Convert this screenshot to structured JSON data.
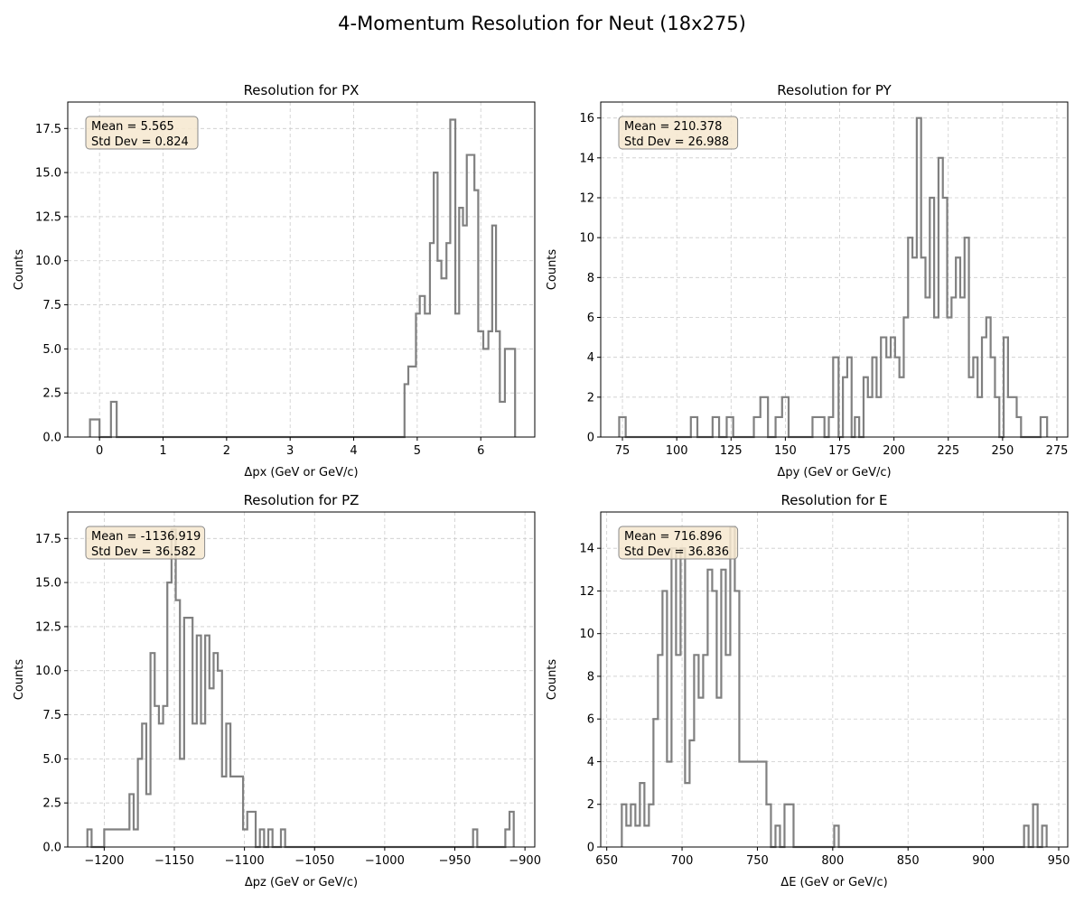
{
  "figure": {
    "title": "4-Momentum Resolution for Neut (18x275)",
    "line_color": "#808080",
    "grid_color": "#cccccc",
    "stats_box_fill": "#f6e7cf",
    "stats_box_edge": "#8a8a8a"
  },
  "chart_data": [
    {
      "type": "histogram",
      "title": "Resolution for PX",
      "xlabel": "Δpx (GeV or GeV/c)",
      "ylabel": "Counts",
      "xlim": [
        -0.5,
        6.85
      ],
      "ylim": [
        0,
        19.0
      ],
      "xticks": [
        0,
        1,
        2,
        3,
        4,
        5,
        6
      ],
      "xtick_labels": [
        "0",
        "1",
        "2",
        "3",
        "4",
        "5",
        "6"
      ],
      "yticks": [
        0,
        2.5,
        5,
        7.5,
        10,
        12.5,
        15,
        17.5
      ],
      "ytick_labels": [
        "0.0",
        "2.5",
        "5.0",
        "7.5",
        "10.0",
        "12.5",
        "15.0",
        "17.5"
      ],
      "grid": true,
      "stats": [
        "Mean = 5.565",
        "Std Dev = 0.824"
      ],
      "stats_position": "top-left",
      "bins": [
        [
          -0.15,
          0,
          1
        ],
        [
          0,
          0.18,
          0
        ],
        [
          0.18,
          0.27,
          2
        ],
        [
          0.27,
          4.8,
          0
        ],
        [
          4.8,
          4.86,
          3
        ],
        [
          4.86,
          4.98,
          4
        ],
        [
          4.98,
          5.04,
          7
        ],
        [
          5.04,
          5.12,
          8
        ],
        [
          5.12,
          5.2,
          7
        ],
        [
          5.2,
          5.26,
          11
        ],
        [
          5.26,
          5.32,
          15
        ],
        [
          5.32,
          5.38,
          10
        ],
        [
          5.38,
          5.46,
          9
        ],
        [
          5.46,
          5.52,
          11
        ],
        [
          5.52,
          5.6,
          18
        ],
        [
          5.6,
          5.66,
          7
        ],
        [
          5.66,
          5.72,
          13
        ],
        [
          5.72,
          5.78,
          12
        ],
        [
          5.78,
          5.9,
          16
        ],
        [
          5.9,
          5.96,
          14
        ],
        [
          5.96,
          6.04,
          6
        ],
        [
          6.04,
          6.12,
          5
        ],
        [
          6.12,
          6.18,
          6
        ],
        [
          6.18,
          6.24,
          12
        ],
        [
          6.24,
          6.3,
          6
        ],
        [
          6.3,
          6.38,
          2
        ],
        [
          6.38,
          6.54,
          5
        ]
      ]
    },
    {
      "type": "histogram",
      "title": "Resolution for PY",
      "xlabel": "Δpy (GeV or GeV/c)",
      "ylabel": "Counts",
      "xlim": [
        65,
        280
      ],
      "ylim": [
        0,
        16.8
      ],
      "xticks": [
        75,
        100,
        125,
        150,
        175,
        200,
        225,
        250,
        275
      ],
      "xtick_labels": [
        "75",
        "100",
        "125",
        "150",
        "175",
        "200",
        "225",
        "250",
        "275"
      ],
      "yticks": [
        0,
        2,
        4,
        6,
        8,
        10,
        12,
        14,
        16
      ],
      "ytick_labels": [
        "0",
        "2",
        "4",
        "6",
        "8",
        "10",
        "12",
        "14",
        "16"
      ],
      "grid": true,
      "stats": [
        "Mean = 210.378",
        "Std Dev = 26.988"
      ],
      "stats_position": "top-left",
      "bins": [
        [
          73.5,
          76.5,
          1
        ],
        [
          76.5,
          106.5,
          0
        ],
        [
          106.5,
          109.5,
          1
        ],
        [
          109.5,
          116.5,
          0
        ],
        [
          116.5,
          119.5,
          1
        ],
        [
          119.5,
          123,
          0
        ],
        [
          123,
          126,
          1
        ],
        [
          126,
          135.5,
          0
        ],
        [
          135.5,
          138.5,
          1
        ],
        [
          138.5,
          142,
          2
        ],
        [
          142,
          145.5,
          0
        ],
        [
          145.5,
          148.5,
          1
        ],
        [
          148.5,
          151.5,
          2
        ],
        [
          151.5,
          162.5,
          0
        ],
        [
          162.5,
          168,
          1
        ],
        [
          168,
          170,
          0
        ],
        [
          170,
          172,
          1
        ],
        [
          172,
          174.5,
          4
        ],
        [
          174.5,
          176.5,
          0
        ],
        [
          176.5,
          178.5,
          3
        ],
        [
          178.5,
          180.5,
          4
        ],
        [
          180.5,
          182,
          0
        ],
        [
          182,
          184,
          1
        ],
        [
          184,
          186,
          0
        ],
        [
          186,
          188,
          3
        ],
        [
          188,
          190,
          2
        ],
        [
          190,
          192,
          4
        ],
        [
          192,
          194,
          2
        ],
        [
          194,
          196.5,
          5
        ],
        [
          196.5,
          198.5,
          4
        ],
        [
          198.5,
          200.5,
          5
        ],
        [
          200.5,
          202.5,
          4
        ],
        [
          202.5,
          204.5,
          3
        ],
        [
          204.5,
          206.5,
          6
        ],
        [
          206.5,
          208.5,
          10
        ],
        [
          208.5,
          210.5,
          9
        ],
        [
          210.5,
          212.5,
          16
        ],
        [
          212.5,
          214.5,
          9
        ],
        [
          214.5,
          216.5,
          7
        ],
        [
          216.5,
          218.5,
          12
        ],
        [
          218.5,
          220.5,
          6
        ],
        [
          220.5,
          222.5,
          14
        ],
        [
          222.5,
          224.5,
          12
        ],
        [
          224.5,
          226.5,
          6
        ],
        [
          226.5,
          228.5,
          7
        ],
        [
          228.5,
          230.5,
          9
        ],
        [
          230.5,
          232.5,
          7
        ],
        [
          232.5,
          234.5,
          10
        ],
        [
          234.5,
          236.5,
          3
        ],
        [
          236.5,
          238.5,
          4
        ],
        [
          238.5,
          240.5,
          2
        ],
        [
          240.5,
          242.5,
          5
        ],
        [
          242.5,
          244.5,
          6
        ],
        [
          244.5,
          246.5,
          4
        ],
        [
          246.5,
          248.5,
          2
        ],
        [
          248.5,
          250.5,
          0
        ],
        [
          250.5,
          252.5,
          5
        ],
        [
          252.5,
          254.5,
          2
        ],
        [
          254.5,
          256.5,
          2
        ],
        [
          256.5,
          258.5,
          1
        ],
        [
          258.5,
          267.5,
          0
        ],
        [
          267.5,
          270.5,
          1
        ]
      ]
    },
    {
      "type": "histogram",
      "title": "Resolution for PZ",
      "xlabel": "Δpz (GeV or GeV/c)",
      "ylabel": "Counts",
      "xlim": [
        -1226,
        -893
      ],
      "ylim": [
        0,
        19.0
      ],
      "xticks": [
        -1200,
        -1150,
        -1100,
        -1050,
        -1000,
        -950,
        -900
      ],
      "xtick_labels": [
        "−1200",
        "−1150",
        "−1100",
        "−1050",
        "−1000",
        "−950",
        "−900"
      ],
      "yticks": [
        0,
        2.5,
        5,
        7.5,
        10,
        12.5,
        15,
        17.5
      ],
      "ytick_labels": [
        "0.0",
        "2.5",
        "5.0",
        "7.5",
        "10.0",
        "12.5",
        "15.0",
        "17.5"
      ],
      "grid": true,
      "stats": [
        "Mean = -1136.919",
        "Std Dev = 36.582"
      ],
      "stats_position": "top-left",
      "bins": [
        [
          -1212,
          -1209,
          1
        ],
        [
          -1209,
          -1200,
          0
        ],
        [
          -1200,
          -1182,
          1
        ],
        [
          -1182,
          -1179,
          3
        ],
        [
          -1179,
          -1176,
          1
        ],
        [
          -1176,
          -1173,
          5
        ],
        [
          -1173,
          -1170,
          7
        ],
        [
          -1170,
          -1167,
          3
        ],
        [
          -1167,
          -1164,
          11
        ],
        [
          -1164,
          -1161,
          8
        ],
        [
          -1161,
          -1158,
          7
        ],
        [
          -1158,
          -1155,
          8
        ],
        [
          -1155,
          -1152,
          15
        ],
        [
          -1152,
          -1149,
          18
        ],
        [
          -1149,
          -1146,
          14
        ],
        [
          -1146,
          -1143,
          5
        ],
        [
          -1143,
          -1137,
          13
        ],
        [
          -1137,
          -1134,
          7
        ],
        [
          -1134,
          -1131,
          12
        ],
        [
          -1131,
          -1128,
          7
        ],
        [
          -1128,
          -1125,
          12
        ],
        [
          -1125,
          -1122,
          9
        ],
        [
          -1122,
          -1119,
          11
        ],
        [
          -1119,
          -1116,
          10
        ],
        [
          -1116,
          -1113,
          4
        ],
        [
          -1113,
          -1110,
          7
        ],
        [
          -1110,
          -1101,
          4
        ],
        [
          -1101,
          -1098,
          1
        ],
        [
          -1098,
          -1092,
          2
        ],
        [
          -1092,
          -1089,
          0
        ],
        [
          -1089,
          -1086,
          1
        ],
        [
          -1086,
          -1083,
          0
        ],
        [
          -1083,
          -1080,
          1
        ],
        [
          -1080,
          -1074,
          0
        ],
        [
          -1074,
          -1071,
          1
        ],
        [
          -1071,
          -937,
          0
        ],
        [
          -937,
          -934,
          1
        ],
        [
          -934,
          -914,
          0
        ],
        [
          -914,
          -911,
          1
        ],
        [
          -911,
          -908,
          2
        ]
      ]
    },
    {
      "type": "histogram",
      "title": "Resolution for E",
      "xlabel": "ΔE (GeV or GeV/c)",
      "ylabel": "Counts",
      "xlim": [
        646,
        956
      ],
      "ylim": [
        0,
        15.7
      ],
      "xticks": [
        650,
        700,
        750,
        800,
        850,
        900,
        950
      ],
      "xtick_labels": [
        "650",
        "700",
        "750",
        "800",
        "850",
        "900",
        "950"
      ],
      "yticks": [
        0,
        2,
        4,
        6,
        8,
        10,
        12,
        14
      ],
      "ytick_labels": [
        "0",
        "2",
        "4",
        "6",
        "8",
        "10",
        "12",
        "14"
      ],
      "grid": true,
      "stats": [
        "Mean = 716.896",
        "Std Dev = 36.836"
      ],
      "stats_position": "top-left",
      "bins": [
        [
          660,
          663,
          2
        ],
        [
          663,
          666,
          1
        ],
        [
          666,
          669,
          2
        ],
        [
          669,
          672,
          1
        ],
        [
          672,
          675,
          3
        ],
        [
          675,
          678,
          1
        ],
        [
          678,
          681,
          2
        ],
        [
          681,
          684,
          6
        ],
        [
          684,
          687,
          9
        ],
        [
          687,
          690,
          12
        ],
        [
          690,
          693,
          4
        ],
        [
          693,
          696,
          14
        ],
        [
          696,
          699,
          9
        ],
        [
          699,
          702,
          14
        ],
        [
          702,
          705,
          3
        ],
        [
          705,
          708,
          5
        ],
        [
          708,
          711,
          9
        ],
        [
          711,
          714,
          7
        ],
        [
          714,
          717,
          9
        ],
        [
          717,
          720,
          13
        ],
        [
          720,
          723,
          12
        ],
        [
          723,
          726,
          7
        ],
        [
          726,
          729,
          13
        ],
        [
          729,
          732,
          9
        ],
        [
          732,
          735,
          15
        ],
        [
          735,
          738,
          12
        ],
        [
          738,
          756,
          4
        ],
        [
          756,
          759,
          2
        ],
        [
          759,
          762,
          0
        ],
        [
          762,
          765,
          1
        ],
        [
          765,
          768,
          0
        ],
        [
          768,
          774,
          2
        ],
        [
          774,
          801,
          0
        ],
        [
          801,
          804,
          1
        ],
        [
          804,
          927,
          0
        ],
        [
          927,
          930,
          1
        ],
        [
          930,
          933,
          0
        ],
        [
          933,
          936,
          2
        ],
        [
          936,
          939,
          0
        ],
        [
          939,
          942,
          1
        ]
      ]
    }
  ]
}
